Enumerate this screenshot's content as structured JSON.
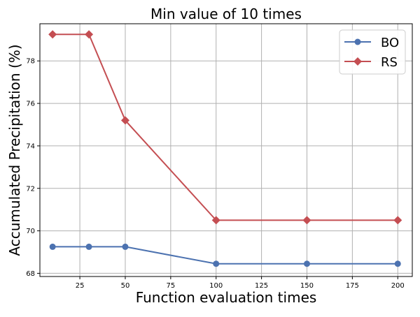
{
  "chart_data": {
    "type": "line",
    "title": "Min value of 10 times",
    "xlabel": "Function evaluation times",
    "ylabel": "Accumulated Precipitation (%)",
    "xlim": [
      3,
      208
    ],
    "ylim": [
      67.85,
      79.75
    ],
    "x_ticks": [
      25,
      50,
      75,
      100,
      125,
      150,
      175,
      200
    ],
    "y_ticks": [
      68,
      70,
      72,
      74,
      76,
      78
    ],
    "grid": true,
    "legend_position": "top-right",
    "x": [
      10,
      30,
      50,
      100,
      150,
      200
    ],
    "series": [
      {
        "name": "BO",
        "color": "#4c72b0",
        "marker": "circle",
        "values": [
          69.25,
          69.25,
          69.25,
          68.45,
          68.45,
          68.45
        ]
      },
      {
        "name": "RS",
        "color": "#c44e52",
        "marker": "diamond",
        "values": [
          79.25,
          79.25,
          75.2,
          70.5,
          70.5,
          70.5
        ]
      }
    ]
  }
}
